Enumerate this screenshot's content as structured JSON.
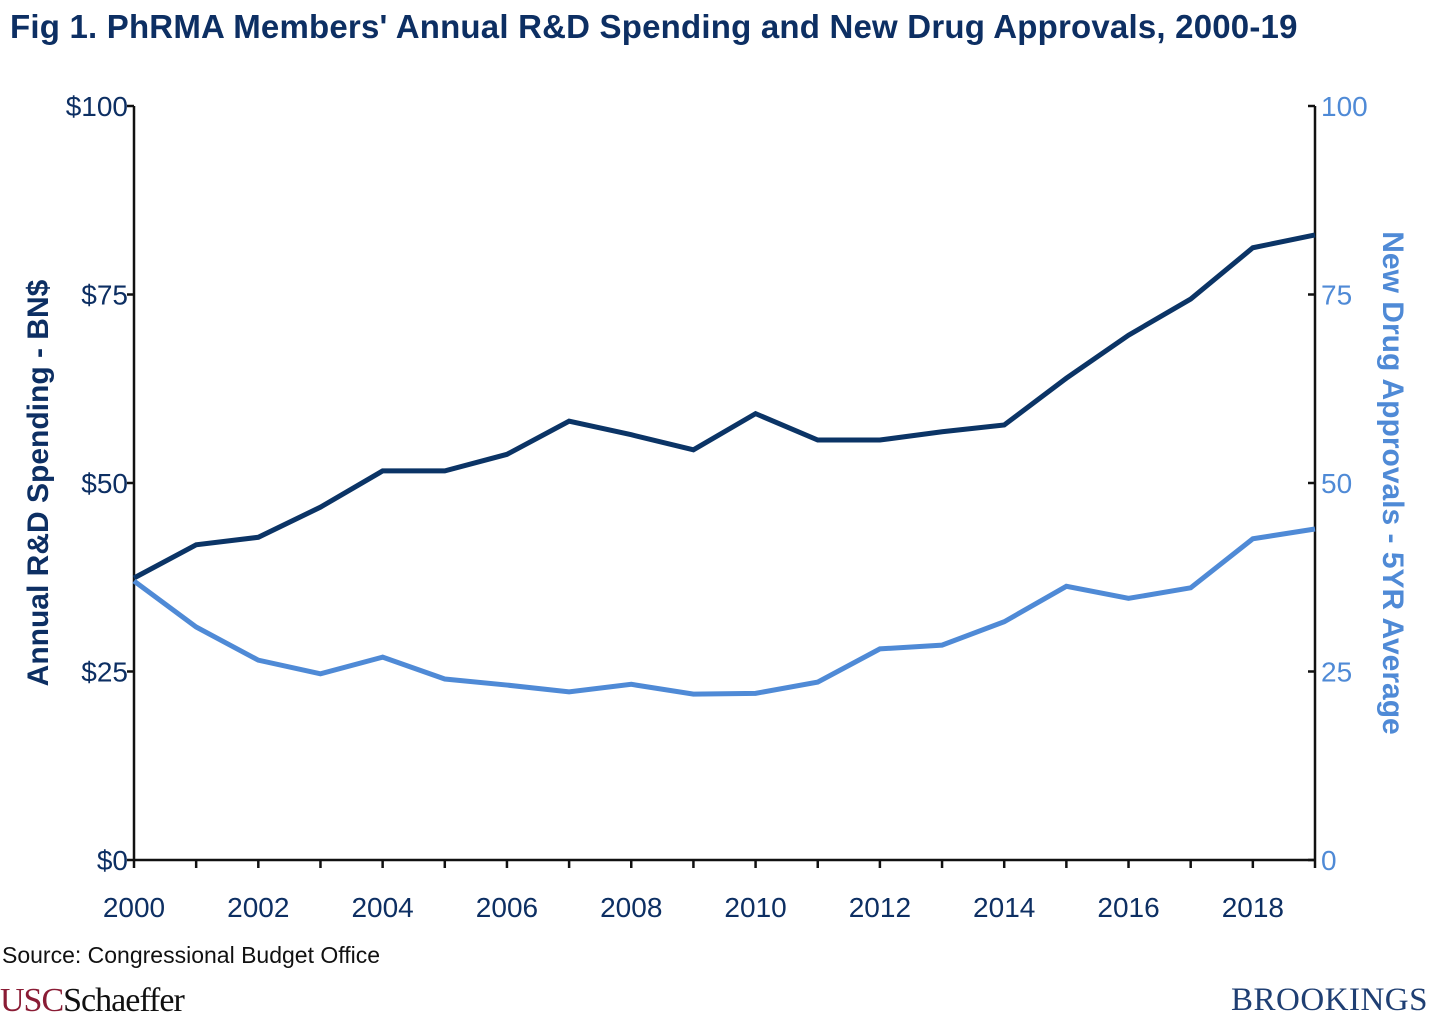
{
  "chart_data": {
    "type": "line",
    "title": "Fig 1. PhRMA Members' Annual R&D Spending and New Drug Approvals, 2000-19",
    "x": [
      2000,
      2001,
      2002,
      2003,
      2004,
      2005,
      2006,
      2007,
      2008,
      2009,
      2010,
      2011,
      2012,
      2013,
      2014,
      2015,
      2016,
      2017,
      2018,
      2019
    ],
    "xticks": [
      "2000",
      "2002",
      "2004",
      "2006",
      "2008",
      "2010",
      "2012",
      "2014",
      "2016",
      "2018"
    ],
    "xlim": [
      2000,
      2019
    ],
    "ylabel_left": "Annual R&D Spending - BN$",
    "ylabel_right": "New Drug Approvals - 5YR Average",
    "ylim_left": [
      0,
      100
    ],
    "ylim_right": [
      0,
      100
    ],
    "yticks_left": [
      "$0",
      "$25",
      "$50",
      "$75",
      "$100"
    ],
    "yticks_right": [
      "0",
      "25",
      "50",
      "75",
      "100"
    ],
    "grid": false,
    "series": [
      {
        "axis": "left",
        "color": "#0b3466",
        "values": [
          37.4,
          41.8,
          42.8,
          46.8,
          51.6,
          51.6,
          53.8,
          58.2,
          56.4,
          54.4,
          59.2,
          55.7,
          55.7,
          56.8,
          57.7,
          63.9,
          69.6,
          74.4,
          81.2,
          82.9
        ]
      },
      {
        "axis": "right",
        "color": "#4f8ad6",
        "values": [
          37.0,
          30.9,
          26.5,
          24.7,
          26.9,
          24.0,
          23.2,
          22.3,
          23.3,
          22.0,
          22.1,
          23.6,
          28.0,
          28.5,
          31.6,
          36.3,
          34.7,
          36.1,
          42.6,
          43.9
        ]
      }
    ],
    "colors": {
      "left_axis": "#0d2f63",
      "right_axis": "#4f8ad6"
    }
  },
  "footer": {
    "source": "Source: Congressional Budget Office",
    "logo_left_a": "USC",
    "logo_left_b": "Schaeffer",
    "logo_right": "BROOKINGS"
  }
}
